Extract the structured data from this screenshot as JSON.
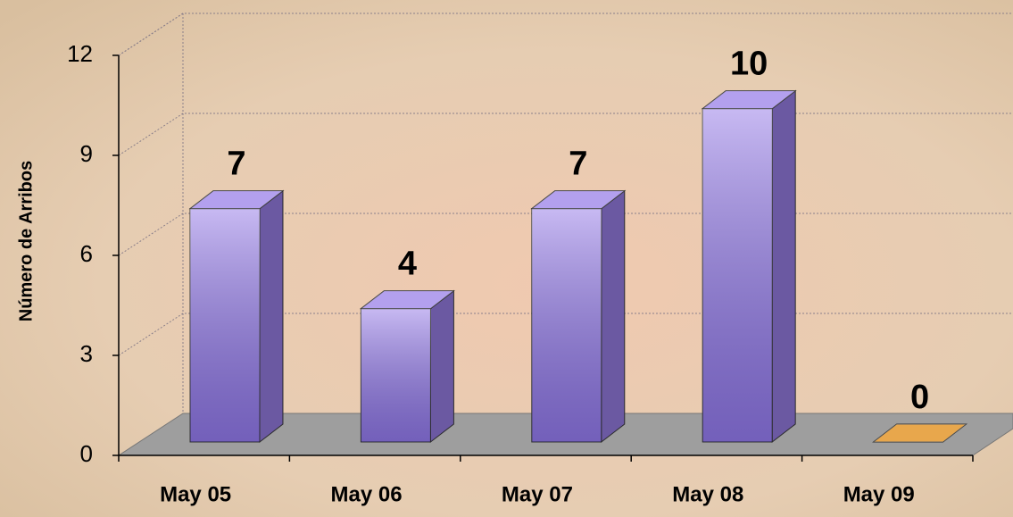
{
  "chart_data": {
    "type": "bar3d",
    "y_label": "Número de Arribos",
    "categories": [
      "May 05",
      "May 06",
      "May 07",
      "May 08",
      "May 09"
    ],
    "values": [
      7,
      4,
      7,
      10,
      0
    ],
    "colors": [
      "#9a80e8",
      "#9a80e8",
      "#9a80e8",
      "#9a80e8",
      "#e08a10"
    ],
    "ylim": [
      0,
      12
    ],
    "yticks": [
      0,
      3,
      6,
      9,
      12
    ],
    "grid": true
  }
}
